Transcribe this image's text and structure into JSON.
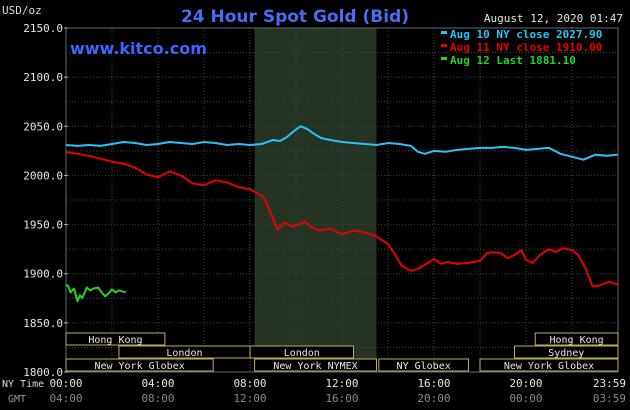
{
  "header": {
    "title": "24 Hour Spot Gold (Bid)",
    "timestamp": "August 12, 2020 01:47",
    "unit": "USD/oz",
    "brand": "www.kitco.com"
  },
  "colors": {
    "background": "#000000",
    "grid": "#3c4a3c",
    "title": "#4a6cf0",
    "brand": "#3d66ff",
    "aug10": "#29c4f6",
    "aug11": "#e60000",
    "aug12": "#22d422",
    "market_box_border": "#bfae5a",
    "nymex_shade": "#243324"
  },
  "legend": [
    {
      "label": "Aug 10 NY close 2027.90",
      "color": "#29c4f6"
    },
    {
      "label": "Aug 11 NY close 1910.00",
      "color": "#e60000"
    },
    {
      "label": "Aug 12 Last 1881.10",
      "color": "#22d422"
    }
  ],
  "markets": [
    {
      "label": "Hong Kong",
      "start": 0,
      "end": 4.3,
      "row": 0
    },
    {
      "label": "Hong Kong",
      "start": 20.4,
      "end": 24,
      "row": 0
    },
    {
      "label": "London",
      "start": 2.3,
      "end": 8,
      "row": 1
    },
    {
      "label": "London",
      "start": 8,
      "end": 12.5,
      "row": 1
    },
    {
      "label": "Sydney",
      "start": 19.5,
      "end": 24,
      "row": 1
    },
    {
      "label": "New York Globex",
      "start": 0,
      "end": 6.4,
      "row": 2
    },
    {
      "label": "New York NYMEX",
      "start": 8.2,
      "end": 13.5,
      "row": 2
    },
    {
      "label": "NY Globex",
      "start": 13.6,
      "end": 17.5,
      "row": 2
    },
    {
      "label": "New York Globex",
      "start": 18,
      "end": 24,
      "row": 2
    }
  ],
  "time_rows": {
    "ny_label": "NY Time",
    "gmt_label": "GMT"
  },
  "chart_data": {
    "type": "line",
    "title": "24 Hour Spot Gold (Bid)",
    "ylabel": "USD/oz",
    "xlim": [
      0,
      24
    ],
    "ylim": [
      1800,
      2150
    ],
    "yticks": [
      1800,
      1850,
      1900,
      1950,
      2000,
      2050,
      2100,
      2150
    ],
    "ytick_labels": [
      "1800.0",
      "1850.0",
      "1900.0",
      "1950.0",
      "2000.0",
      "2050.0",
      "2100.0",
      "2150.0"
    ],
    "xticks": [
      0,
      4,
      8,
      12,
      16,
      20,
      24
    ],
    "ny_time_labels": [
      "00:00",
      "04:00",
      "08:00",
      "12:00",
      "16:00",
      "20:00",
      "23:59"
    ],
    "gmt_labels": [
      "04:00",
      "08:00",
      "12:00",
      "16:00",
      "20:00",
      "00:00",
      "03:59"
    ],
    "shaded_region": [
      8.2,
      13.5
    ],
    "grid": true,
    "legend_position": "top-right",
    "series": [
      {
        "name": "Aug 10 NY close 2027.90",
        "color": "#29c4f6",
        "x": [
          0,
          0.5,
          1,
          1.5,
          2,
          2.5,
          3,
          3.5,
          4,
          4.5,
          5,
          5.5,
          6,
          6.5,
          7,
          7.5,
          8,
          8.5,
          9,
          9.3,
          9.6,
          9.9,
          10.2,
          10.5,
          10.8,
          11.1,
          11.5,
          12,
          12.5,
          13,
          13.5,
          14,
          14.5,
          15,
          15.3,
          15.6,
          16,
          16.5,
          17,
          17.5,
          18,
          18.5,
          19,
          19.5,
          20,
          20.5,
          21,
          21.5,
          22,
          22.5,
          23,
          23.5,
          23.98
        ],
        "y": [
          2031,
          2030,
          2031,
          2030,
          2032,
          2034,
          2033,
          2031,
          2032,
          2034,
          2033,
          2032,
          2034,
          2033,
          2031,
          2032,
          2031,
          2032,
          2036,
          2035,
          2039,
          2045,
          2050,
          2047,
          2042,
          2038,
          2036,
          2034,
          2033,
          2032,
          2031,
          2033,
          2032,
          2030,
          2024,
          2022,
          2025,
          2024,
          2026,
          2027,
          2028,
          2028,
          2029,
          2028,
          2026,
          2027,
          2028,
          2022,
          2019,
          2016,
          2021,
          2020,
          2021
        ]
      },
      {
        "name": "Aug 11 NY close 1910.00",
        "color": "#e60000",
        "x": [
          0,
          0.5,
          1,
          1.5,
          2,
          2.5,
          3,
          3.5,
          4,
          4.5,
          5,
          5.5,
          6,
          6.5,
          7,
          7.5,
          8,
          8.3,
          8.6,
          8.9,
          9.2,
          9.5,
          9.8,
          10.1,
          10.4,
          10.7,
          11,
          11.5,
          12,
          12.5,
          13,
          13.5,
          14,
          14.3,
          14.6,
          15,
          15.3,
          15.6,
          16,
          16.3,
          16.6,
          17,
          17.5,
          18,
          18.3,
          18.6,
          18.9,
          19.2,
          19.5,
          19.8,
          20,
          20.3,
          20.6,
          21,
          21.3,
          21.6,
          22,
          22.3,
          22.6,
          22.9,
          23.2,
          23.6,
          23.98
        ],
        "y": [
          2024,
          2022,
          2020,
          2017,
          2014,
          2012,
          2008,
          2001,
          1998,
          2004,
          2000,
          1992,
          1990,
          1995,
          1993,
          1988,
          1986,
          1982,
          1978,
          1962,
          1945,
          1952,
          1948,
          1950,
          1953,
          1947,
          1944,
          1946,
          1940,
          1944,
          1942,
          1938,
          1930,
          1920,
          1908,
          1903,
          1905,
          1909,
          1915,
          1910,
          1912,
          1910,
          1911,
          1913,
          1921,
          1922,
          1921,
          1916,
          1919,
          1924,
          1914,
          1911,
          1919,
          1925,
          1922,
          1926,
          1924,
          1918,
          1905,
          1887,
          1888,
          1892,
          1889
        ]
      },
      {
        "name": "Aug 12 Last 1881.10",
        "color": "#22d422",
        "x": [
          0,
          0.1,
          0.2,
          0.35,
          0.5,
          0.6,
          0.7,
          0.8,
          0.9,
          1.05,
          1.2,
          1.4,
          1.55,
          1.7,
          1.85,
          2.0,
          2.15,
          2.3,
          2.45,
          2.6
        ],
        "y": [
          1889,
          1887,
          1881,
          1885,
          1872,
          1878,
          1875,
          1880,
          1886,
          1883,
          1885,
          1886,
          1881,
          1877,
          1880,
          1884,
          1881,
          1883,
          1882,
          1881
        ]
      }
    ]
  }
}
